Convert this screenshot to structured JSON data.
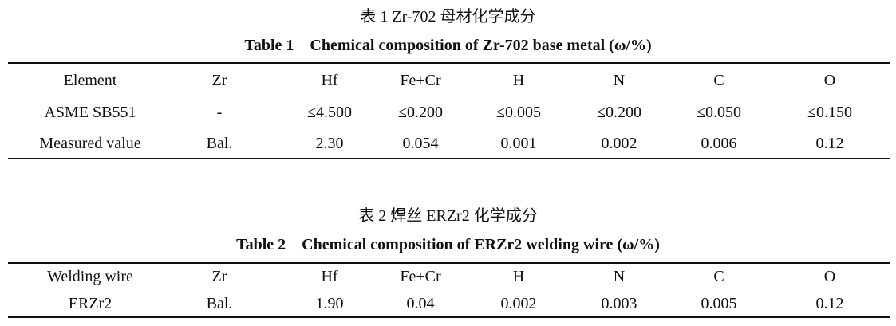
{
  "table1": {
    "caption_cn": "表 1   Zr-702 母材化学成分",
    "caption_en": "Table 1    Chemical composition of Zr-702 base metal (ω/%)",
    "headers": [
      "Element",
      "Zr",
      "Hf",
      "Fe+Cr",
      "H",
      "N",
      "C",
      "O"
    ],
    "rows": [
      [
        "ASME SB551",
        "-",
        "≤4.500",
        "≤0.200",
        "≤0.005",
        "≤0.200",
        "≤0.050",
        "≤0.150"
      ],
      [
        "Measured value",
        "Bal.",
        "2.30",
        "0.054",
        "0.001",
        "0.002",
        "0.006",
        "0.12"
      ]
    ]
  },
  "table2": {
    "caption_cn": "表 2   焊丝 ERZr2 化学成分",
    "caption_en": "Table 2    Chemical composition of ERZr2 welding wire (ω/%)",
    "headers": [
      "Welding wire",
      "Zr",
      "Hf",
      "Fe+Cr",
      "H",
      "N",
      "C",
      "O"
    ],
    "rows": [
      [
        "ERZr2",
        "Bal.",
        "1.90",
        "0.04",
        "0.002",
        "0.003",
        "0.005",
        "0.12"
      ]
    ]
  }
}
